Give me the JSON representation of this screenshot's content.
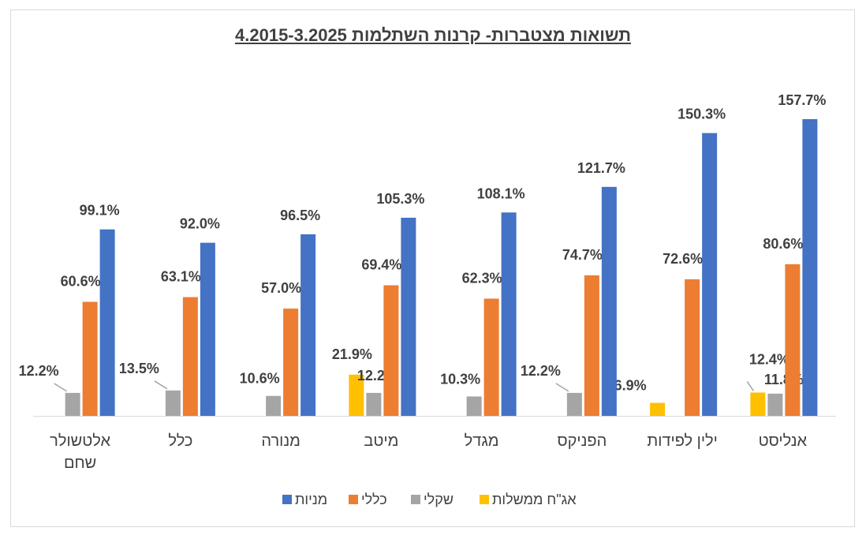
{
  "chart_data": {
    "type": "bar",
    "title": "תשואות מצטברות- קרנות השתלמות 4.2015-3.2025",
    "categories": [
      "אלטשולר שחם",
      "כלל",
      "מנורה",
      "מיטב",
      "מגדל",
      "הפניקס",
      "ילין לפידות",
      "אנליסט"
    ],
    "category_lines": [
      [
        "אלטשולר",
        "שחם"
      ],
      [
        "כלל"
      ],
      [
        "מנורה"
      ],
      [
        "מיטב"
      ],
      [
        "מגדל"
      ],
      [
        "הפניקס"
      ],
      [
        "ילין לפידות"
      ],
      [
        "אנליסט"
      ]
    ],
    "series": [
      {
        "name": "אג\"ח ממשלות",
        "color": "#FFC000",
        "values": [
          null,
          null,
          null,
          21.9,
          null,
          null,
          6.9,
          12.4
        ]
      },
      {
        "name": "שקלי",
        "color": "#A5A5A5",
        "values": [
          12.2,
          13.5,
          10.6,
          12.2,
          10.3,
          12.2,
          null,
          11.8
        ]
      },
      {
        "name": "כללי",
        "color": "#ED7D31",
        "values": [
          60.6,
          63.1,
          57.0,
          69.4,
          62.3,
          74.7,
          72.6,
          80.6
        ]
      },
      {
        "name": "מניות",
        "color": "#4472C4",
        "values": [
          99.1,
          92.0,
          96.5,
          105.3,
          108.1,
          121.7,
          150.3,
          157.7
        ]
      }
    ],
    "value_suffix": "%",
    "ylim": [
      0,
      180
    ],
    "grid": false,
    "legend_position": "bottom",
    "legend_order": [
      "מניות",
      "כללי",
      "שקלי",
      "אג\"ח ממשלות"
    ]
  }
}
